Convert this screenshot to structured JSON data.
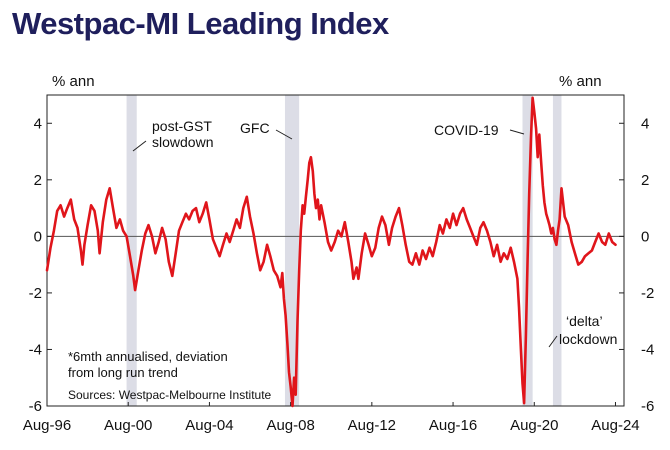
{
  "title": "Westpac-MI Leading Index",
  "chart_data": {
    "type": "line",
    "title": "Westpac-MI Leading Index",
    "ylabel_left": "% ann",
    "ylabel_right": "% ann",
    "ylim": [
      -6,
      5
    ],
    "yticks": [
      4,
      2,
      0,
      -2,
      -4,
      -6
    ],
    "xlim": [
      1996.58,
      2025.0
    ],
    "xticks": [
      {
        "label": "Aug-96",
        "x": 1996.58
      },
      {
        "label": "Aug-00",
        "x": 2000.58
      },
      {
        "label": "Aug-04",
        "x": 2004.58
      },
      {
        "label": "Aug-08",
        "x": 2008.58
      },
      {
        "label": "Aug-12",
        "x": 2012.58
      },
      {
        "label": "Aug-16",
        "x": 2016.58
      },
      {
        "label": "Aug-20",
        "x": 2020.58
      },
      {
        "label": "Aug-24",
        "x": 2024.58
      }
    ],
    "shaded_periods": [
      {
        "name": "post-GST slowdown",
        "start": 2000.5,
        "end": 2001.0
      },
      {
        "name": "GFC",
        "start": 2008.3,
        "end": 2009.0
      },
      {
        "name": "COVID-19",
        "start": 2020.0,
        "end": 2020.5
      },
      {
        "name": "delta lockdown",
        "start": 2021.5,
        "end": 2021.92
      }
    ],
    "annotations": {
      "post_gst": [
        "post-GST",
        "slowdown"
      ],
      "gfc": "GFC",
      "covid": "COVID-19",
      "delta": [
        "‘delta’",
        "lockdown"
      ]
    },
    "footnote": [
      "*6mth annualised, deviation",
      "from long run trend"
    ],
    "source": "Sources: Westpac-Melbourne Institute",
    "series": [
      {
        "name": "Westpac-MI Leading Index",
        "color": "#e0151b",
        "points": [
          [
            1996.58,
            -1.2
          ],
          [
            1996.75,
            -0.4
          ],
          [
            1996.92,
            0.2
          ],
          [
            1997.08,
            0.9
          ],
          [
            1997.25,
            1.1
          ],
          [
            1997.42,
            0.7
          ],
          [
            1997.58,
            1.0
          ],
          [
            1997.75,
            1.3
          ],
          [
            1997.92,
            0.6
          ],
          [
            1998.08,
            0.3
          ],
          [
            1998.25,
            -0.5
          ],
          [
            1998.33,
            -1.0
          ],
          [
            1998.42,
            -0.3
          ],
          [
            1998.58,
            0.4
          ],
          [
            1998.75,
            1.1
          ],
          [
            1998.92,
            0.9
          ],
          [
            1999.08,
            0.2
          ],
          [
            1999.17,
            -0.6
          ],
          [
            1999.33,
            0.5
          ],
          [
            1999.5,
            1.3
          ],
          [
            1999.67,
            1.7
          ],
          [
            1999.83,
            1.0
          ],
          [
            2000.0,
            0.3
          ],
          [
            2000.17,
            0.6
          ],
          [
            2000.33,
            0.2
          ],
          [
            2000.5,
            0.0
          ],
          [
            2000.67,
            -0.7
          ],
          [
            2000.83,
            -1.4
          ],
          [
            2000.92,
            -1.9
          ],
          [
            2001.08,
            -1.2
          ],
          [
            2001.25,
            -0.5
          ],
          [
            2001.42,
            0.1
          ],
          [
            2001.58,
            0.4
          ],
          [
            2001.75,
            0.0
          ],
          [
            2001.92,
            -0.6
          ],
          [
            2002.08,
            -0.2
          ],
          [
            2002.25,
            0.3
          ],
          [
            2002.42,
            -0.1
          ],
          [
            2002.58,
            -0.9
          ],
          [
            2002.75,
            -1.4
          ],
          [
            2002.92,
            -0.6
          ],
          [
            2003.08,
            0.2
          ],
          [
            2003.25,
            0.5
          ],
          [
            2003.42,
            0.8
          ],
          [
            2003.58,
            0.6
          ],
          [
            2003.75,
            0.9
          ],
          [
            2003.92,
            1.0
          ],
          [
            2004.08,
            0.5
          ],
          [
            2004.25,
            0.8
          ],
          [
            2004.42,
            1.2
          ],
          [
            2004.58,
            0.6
          ],
          [
            2004.75,
            -0.1
          ],
          [
            2004.92,
            -0.4
          ],
          [
            2005.08,
            -0.7
          ],
          [
            2005.25,
            -0.3
          ],
          [
            2005.42,
            0.1
          ],
          [
            2005.58,
            -0.2
          ],
          [
            2005.75,
            0.2
          ],
          [
            2005.92,
            0.6
          ],
          [
            2006.08,
            0.3
          ],
          [
            2006.25,
            1.0
          ],
          [
            2006.42,
            1.4
          ],
          [
            2006.58,
            0.7
          ],
          [
            2006.75,
            0.1
          ],
          [
            2006.92,
            -0.6
          ],
          [
            2007.08,
            -1.2
          ],
          [
            2007.25,
            -0.9
          ],
          [
            2007.42,
            -0.3
          ],
          [
            2007.58,
            -0.7
          ],
          [
            2007.75,
            -1.2
          ],
          [
            2007.92,
            -1.4
          ],
          [
            2008.08,
            -1.8
          ],
          [
            2008.17,
            -1.3
          ],
          [
            2008.25,
            -2.2
          ],
          [
            2008.33,
            -2.8
          ],
          [
            2008.42,
            -3.8
          ],
          [
            2008.5,
            -4.8
          ],
          [
            2008.58,
            -5.3
          ],
          [
            2008.67,
            -6.0
          ],
          [
            2008.75,
            -5.0
          ],
          [
            2008.83,
            -5.6
          ],
          [
            2008.92,
            -3.0
          ],
          [
            2009.0,
            -1.2
          ],
          [
            2009.08,
            0.2
          ],
          [
            2009.17,
            1.1
          ],
          [
            2009.25,
            0.8
          ],
          [
            2009.33,
            1.4
          ],
          [
            2009.42,
            2.0
          ],
          [
            2009.5,
            2.6
          ],
          [
            2009.58,
            2.8
          ],
          [
            2009.67,
            2.3
          ],
          [
            2009.75,
            1.5
          ],
          [
            2009.83,
            1.0
          ],
          [
            2009.92,
            1.3
          ],
          [
            2010.0,
            0.6
          ],
          [
            2010.08,
            1.1
          ],
          [
            2010.25,
            0.5
          ],
          [
            2010.42,
            -0.2
          ],
          [
            2010.58,
            -0.5
          ],
          [
            2010.75,
            -0.2
          ],
          [
            2010.92,
            0.2
          ],
          [
            2011.08,
            0.0
          ],
          [
            2011.25,
            0.5
          ],
          [
            2011.42,
            -0.2
          ],
          [
            2011.58,
            -0.9
          ],
          [
            2011.67,
            -1.5
          ],
          [
            2011.83,
            -1.1
          ],
          [
            2011.92,
            -1.5
          ],
          [
            2012.08,
            -0.6
          ],
          [
            2012.25,
            0.1
          ],
          [
            2012.42,
            -0.3
          ],
          [
            2012.58,
            -0.7
          ],
          [
            2012.75,
            -0.4
          ],
          [
            2012.92,
            0.3
          ],
          [
            2013.08,
            0.7
          ],
          [
            2013.25,
            0.4
          ],
          [
            2013.42,
            -0.3
          ],
          [
            2013.58,
            0.3
          ],
          [
            2013.75,
            0.7
          ],
          [
            2013.92,
            1.0
          ],
          [
            2014.08,
            0.4
          ],
          [
            2014.25,
            -0.3
          ],
          [
            2014.42,
            -0.9
          ],
          [
            2014.58,
            -1.0
          ],
          [
            2014.75,
            -0.6
          ],
          [
            2014.92,
            -1.0
          ],
          [
            2015.08,
            -0.5
          ],
          [
            2015.25,
            -0.8
          ],
          [
            2015.42,
            -0.4
          ],
          [
            2015.58,
            -0.7
          ],
          [
            2015.75,
            -0.2
          ],
          [
            2015.92,
            0.4
          ],
          [
            2016.08,
            0.1
          ],
          [
            2016.25,
            0.6
          ],
          [
            2016.42,
            0.3
          ],
          [
            2016.58,
            0.8
          ],
          [
            2016.75,
            0.4
          ],
          [
            2016.92,
            0.8
          ],
          [
            2017.08,
            1.0
          ],
          [
            2017.25,
            0.6
          ],
          [
            2017.42,
            0.3
          ],
          [
            2017.58,
            0.0
          ],
          [
            2017.75,
            -0.3
          ],
          [
            2017.92,
            0.3
          ],
          [
            2018.08,
            0.5
          ],
          [
            2018.25,
            0.2
          ],
          [
            2018.42,
            -0.2
          ],
          [
            2018.58,
            -0.7
          ],
          [
            2018.75,
            -0.3
          ],
          [
            2018.92,
            -0.9
          ],
          [
            2019.08,
            -0.6
          ],
          [
            2019.25,
            -0.8
          ],
          [
            2019.42,
            -0.4
          ],
          [
            2019.58,
            -0.9
          ],
          [
            2019.75,
            -1.5
          ],
          [
            2019.83,
            -2.5
          ],
          [
            2019.92,
            -4.0
          ],
          [
            2020.0,
            -5.2
          ],
          [
            2020.08,
            -5.9
          ],
          [
            2020.17,
            -3.5
          ],
          [
            2020.25,
            -0.8
          ],
          [
            2020.33,
            1.5
          ],
          [
            2020.42,
            3.5
          ],
          [
            2020.5,
            4.9
          ],
          [
            2020.58,
            4.4
          ],
          [
            2020.67,
            3.8
          ],
          [
            2020.75,
            2.8
          ],
          [
            2020.83,
            3.6
          ],
          [
            2020.92,
            2.6
          ],
          [
            2021.0,
            1.8
          ],
          [
            2021.08,
            1.2
          ],
          [
            2021.17,
            0.8
          ],
          [
            2021.25,
            0.6
          ],
          [
            2021.33,
            0.4
          ],
          [
            2021.42,
            0.1
          ],
          [
            2021.5,
            0.3
          ],
          [
            2021.58,
            -0.1
          ],
          [
            2021.67,
            -0.3
          ],
          [
            2021.75,
            0.2
          ],
          [
            2021.83,
            0.6
          ],
          [
            2021.92,
            1.7
          ],
          [
            2022.0,
            1.2
          ],
          [
            2022.08,
            0.7
          ],
          [
            2022.25,
            0.4
          ],
          [
            2022.42,
            -0.2
          ],
          [
            2022.58,
            -0.6
          ],
          [
            2022.75,
            -1.0
          ],
          [
            2022.92,
            -0.9
          ],
          [
            2023.08,
            -0.7
          ],
          [
            2023.25,
            -0.6
          ],
          [
            2023.42,
            -0.5
          ],
          [
            2023.58,
            -0.2
          ],
          [
            2023.75,
            0.1
          ],
          [
            2023.92,
            -0.2
          ],
          [
            2024.08,
            -0.3
          ],
          [
            2024.25,
            0.1
          ],
          [
            2024.42,
            -0.2
          ],
          [
            2024.58,
            -0.3
          ]
        ]
      }
    ]
  }
}
